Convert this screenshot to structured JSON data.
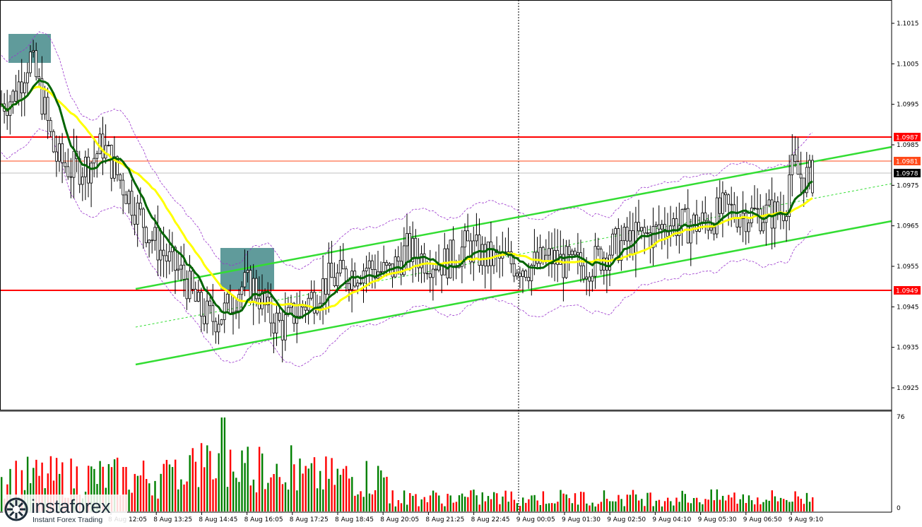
{
  "chart_data": {
    "type": "candlestick",
    "price_axis": {
      "ticks": [
        "1.1015",
        "1.1005",
        "1.0995",
        "1.0985",
        "1.0975",
        "1.0965",
        "1.0955",
        "1.0945",
        "1.0935",
        "1.0925"
      ],
      "range": [
        1.092,
        1.102
      ]
    },
    "time_axis": {
      "ticks": [
        "8 Aug 12:05",
        "8 Aug 13:25",
        "8 Aug 14:45",
        "8 Aug 16:05",
        "8 Aug 17:25",
        "8 Aug 18:45",
        "8 Aug 20:05",
        "8 Aug 21:25",
        "8 Aug 22:45",
        "9 Aug 00:05",
        "9 Aug 01:30",
        "9 Aug 02:50",
        "9 Aug 04:10",
        "9 Aug 05:30",
        "9 Aug 06:50",
        "9 Aug 9:10"
      ]
    },
    "volume_axis": {
      "ticks": [
        "76",
        "0"
      ],
      "max": 76
    },
    "levels": [
      {
        "label": "1.0987",
        "value": 1.0987,
        "color": "#ff0000"
      },
      {
        "label": "1.0981",
        "value": 1.0981,
        "color": "#ff4a1a"
      },
      {
        "label": "1.0978",
        "value": 1.0978,
        "color": "#000000"
      },
      {
        "label": "1.0949",
        "value": 1.0949,
        "color": "#ff0000"
      }
    ],
    "channel_color": "#33dd33",
    "ma_fast_color": "#006400",
    "ma_slow_color": "#ffff00",
    "envelope_color": "#9932cc",
    "bull_color": "#008000",
    "bear_color": "#ff0000",
    "highlight_color": "#4f9090"
  },
  "watermark": {
    "brand": "instaforex",
    "tagline": "Instant Forex Trading"
  }
}
